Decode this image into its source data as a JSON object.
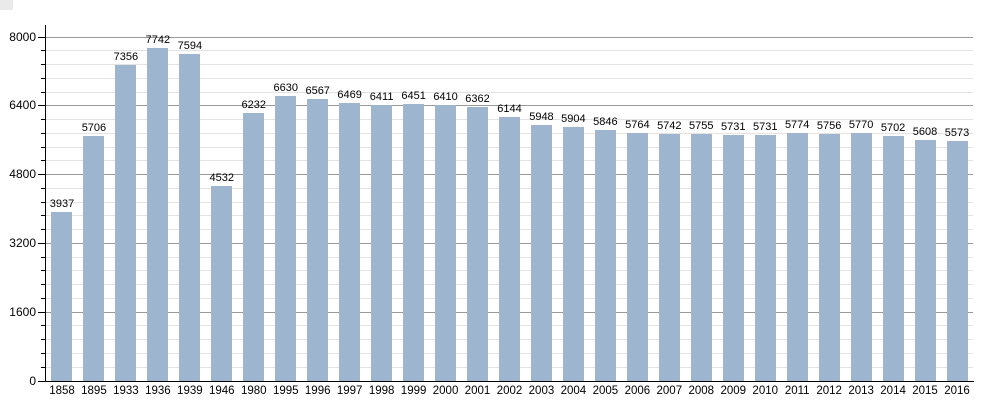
{
  "page": {
    "background_color": "#ffffff"
  },
  "chart_data": {
    "type": "bar",
    "title": "",
    "xlabel": "",
    "ylabel": "",
    "legend": false,
    "grid": true,
    "categories": [
      "1858",
      "1895",
      "1933",
      "1936",
      "1939",
      "1946",
      "1980",
      "1995",
      "1996",
      "1997",
      "1998",
      "1999",
      "2000",
      "2001",
      "2002",
      "2003",
      "2004",
      "2005",
      "2006",
      "2007",
      "2008",
      "2009",
      "2010",
      "2011",
      "2012",
      "2013",
      "2014",
      "2015",
      "2016"
    ],
    "values": [
      3937,
      5706,
      7356,
      7742,
      7594,
      4532,
      6232,
      6630,
      6567,
      6469,
      6411,
      6451,
      6410,
      6362,
      6144,
      5948,
      5904,
      5846,
      5764,
      5742,
      5755,
      5731,
      5731,
      5774,
      5756,
      5770,
      5702,
      5608,
      5573
    ],
    "bar_value_labels": [
      "3937",
      "5706",
      "7356",
      "7742",
      "7594",
      "4532",
      "6232",
      "6630",
      "6567",
      "6469",
      "6411",
      "6451",
      "6410",
      "6362",
      "6144",
      "5948",
      "5904",
      "5846",
      "5764",
      "5742",
      "5755",
      "5731",
      "5731",
      "5774",
      "5756",
      "5770",
      "5702",
      "5608",
      "5573"
    ],
    "ylim": [
      0,
      8000
    ],
    "ytick_major_step": 1600,
    "ytick_minor_step": 320,
    "ytick_labels": [
      "0",
      "1600",
      "3200",
      "4800",
      "6400",
      "8000"
    ],
    "colors": {
      "bar_fill": "#9eb5cf",
      "major_gridline": "#999999",
      "minor_gridline": "#e3e3e3",
      "axis": "#000000",
      "text": "#000000"
    }
  }
}
